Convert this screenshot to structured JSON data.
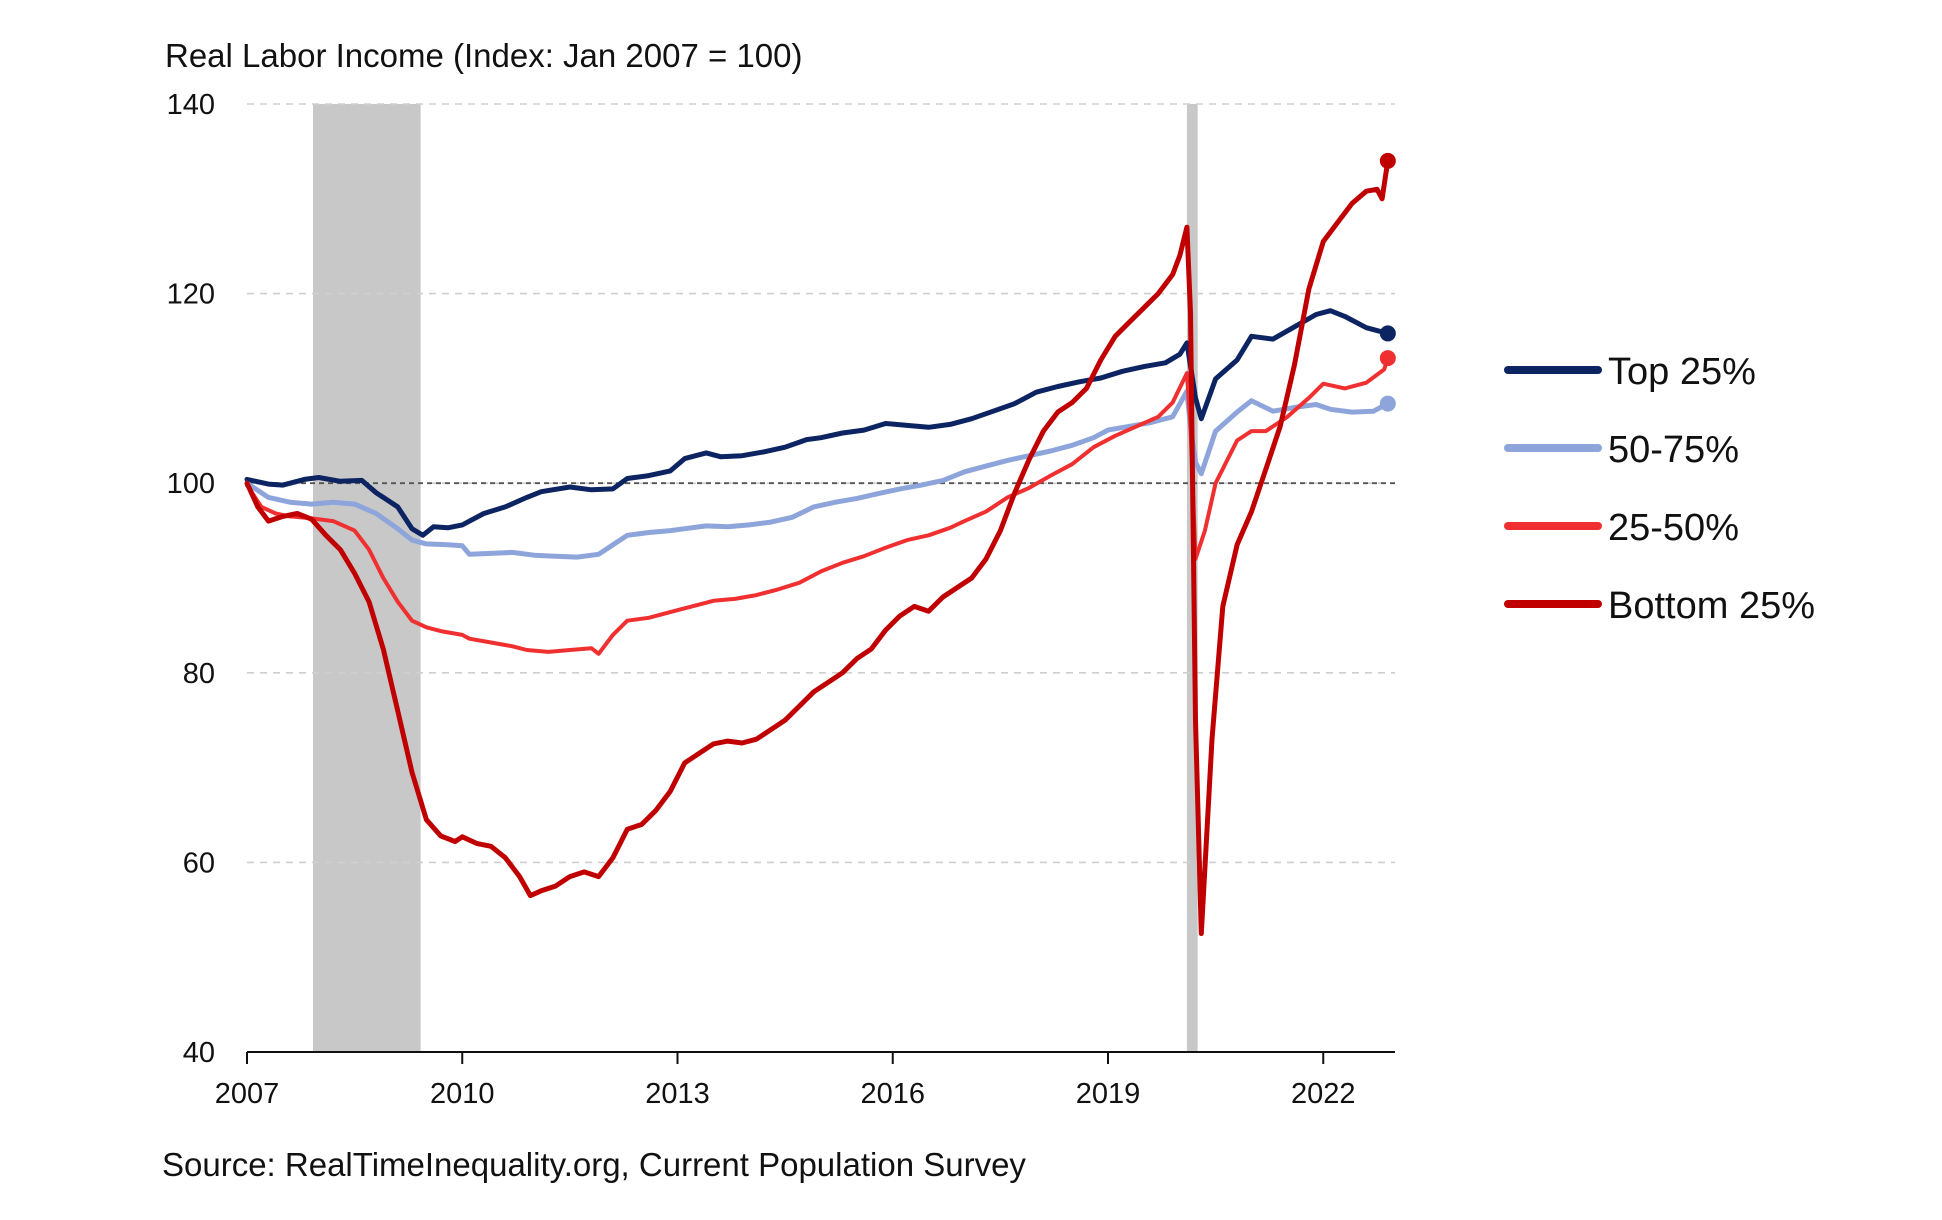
{
  "chart_data": {
    "type": "line",
    "title": "Real Labor Income (Index: Jan 2007 = 100)",
    "source": "Source: RealTimeInequality.org, Current Population Survey",
    "xlabel": "",
    "ylabel": "",
    "xlim": [
      2007,
      2023
    ],
    "ylim": [
      40,
      140
    ],
    "x_ticks": [
      2007,
      2010,
      2013,
      2016,
      2019,
      2022
    ],
    "y_ticks": [
      40,
      60,
      80,
      100,
      120,
      140
    ],
    "grid": "horizontal dashed",
    "reference_line": 100,
    "recessions": [
      [
        2007.92,
        2009.42
      ],
      [
        2020.1,
        2020.25
      ]
    ],
    "legend_position": "right",
    "series": [
      {
        "name": "Top 25%",
        "color": "#0c2461",
        "end_marker": true,
        "points": [
          [
            2007.0,
            100.4
          ],
          [
            2007.3,
            99.9
          ],
          [
            2007.5,
            99.8
          ],
          [
            2007.8,
            100.4
          ],
          [
            2008.0,
            100.6
          ],
          [
            2008.3,
            100.2
          ],
          [
            2008.6,
            100.3
          ],
          [
            2008.8,
            99.0
          ],
          [
            2009.1,
            97.5
          ],
          [
            2009.3,
            95.2
          ],
          [
            2009.45,
            94.5
          ],
          [
            2009.6,
            95.4
          ],
          [
            2009.8,
            95.3
          ],
          [
            2010.0,
            95.6
          ],
          [
            2010.3,
            96.8
          ],
          [
            2010.6,
            97.5
          ],
          [
            2010.9,
            98.5
          ],
          [
            2011.1,
            99.1
          ],
          [
            2011.5,
            99.6
          ],
          [
            2011.8,
            99.3
          ],
          [
            2012.1,
            99.4
          ],
          [
            2012.3,
            100.5
          ],
          [
            2012.6,
            100.8
          ],
          [
            2012.9,
            101.3
          ],
          [
            2013.1,
            102.6
          ],
          [
            2013.4,
            103.2
          ],
          [
            2013.6,
            102.8
          ],
          [
            2013.9,
            102.9
          ],
          [
            2014.2,
            103.3
          ],
          [
            2014.5,
            103.8
          ],
          [
            2014.8,
            104.6
          ],
          [
            2015.0,
            104.8
          ],
          [
            2015.3,
            105.3
          ],
          [
            2015.6,
            105.6
          ],
          [
            2015.9,
            106.3
          ],
          [
            2016.2,
            106.1
          ],
          [
            2016.5,
            105.9
          ],
          [
            2016.8,
            106.2
          ],
          [
            2017.1,
            106.8
          ],
          [
            2017.4,
            107.6
          ],
          [
            2017.7,
            108.4
          ],
          [
            2018.0,
            109.6
          ],
          [
            2018.3,
            110.2
          ],
          [
            2018.6,
            110.7
          ],
          [
            2018.9,
            111.1
          ],
          [
            2019.2,
            111.8
          ],
          [
            2019.5,
            112.3
          ],
          [
            2019.8,
            112.7
          ],
          [
            2020.0,
            113.6
          ],
          [
            2020.1,
            114.8
          ],
          [
            2020.22,
            109.0
          ],
          [
            2020.3,
            106.8
          ],
          [
            2020.5,
            111.0
          ],
          [
            2020.8,
            113.0
          ],
          [
            2021.0,
            115.5
          ],
          [
            2021.3,
            115.2
          ],
          [
            2021.6,
            116.5
          ],
          [
            2021.9,
            117.8
          ],
          [
            2022.1,
            118.2
          ],
          [
            2022.3,
            117.6
          ],
          [
            2022.6,
            116.4
          ],
          [
            2022.9,
            115.8
          ]
        ]
      },
      {
        "name": "50-75%",
        "color": "#8ea5dc",
        "end_marker": true,
        "points": [
          [
            2007.0,
            100.0
          ],
          [
            2007.3,
            98.5
          ],
          [
            2007.6,
            98.0
          ],
          [
            2007.9,
            97.8
          ],
          [
            2008.2,
            98.0
          ],
          [
            2008.5,
            97.8
          ],
          [
            2008.8,
            96.8
          ],
          [
            2009.1,
            95.2
          ],
          [
            2009.3,
            94.0
          ],
          [
            2009.5,
            93.6
          ],
          [
            2009.8,
            93.5
          ],
          [
            2010.0,
            93.4
          ],
          [
            2010.1,
            92.5
          ],
          [
            2010.4,
            92.6
          ],
          [
            2010.7,
            92.7
          ],
          [
            2011.0,
            92.4
          ],
          [
            2011.3,
            92.3
          ],
          [
            2011.6,
            92.2
          ],
          [
            2011.9,
            92.5
          ],
          [
            2012.1,
            93.5
          ],
          [
            2012.3,
            94.5
          ],
          [
            2012.6,
            94.8
          ],
          [
            2012.9,
            95.0
          ],
          [
            2013.1,
            95.2
          ],
          [
            2013.4,
            95.5
          ],
          [
            2013.7,
            95.4
          ],
          [
            2014.0,
            95.6
          ],
          [
            2014.3,
            95.9
          ],
          [
            2014.6,
            96.4
          ],
          [
            2014.9,
            97.5
          ],
          [
            2015.2,
            98.0
          ],
          [
            2015.5,
            98.4
          ],
          [
            2015.8,
            98.9
          ],
          [
            2016.1,
            99.4
          ],
          [
            2016.4,
            99.8
          ],
          [
            2016.7,
            100.3
          ],
          [
            2017.0,
            101.2
          ],
          [
            2017.3,
            101.8
          ],
          [
            2017.6,
            102.4
          ],
          [
            2017.9,
            102.9
          ],
          [
            2018.2,
            103.4
          ],
          [
            2018.5,
            104.0
          ],
          [
            2018.8,
            104.8
          ],
          [
            2019.0,
            105.6
          ],
          [
            2019.3,
            106.0
          ],
          [
            2019.6,
            106.4
          ],
          [
            2019.9,
            107.0
          ],
          [
            2020.1,
            109.7
          ],
          [
            2020.15,
            106.0
          ],
          [
            2020.22,
            102.2
          ],
          [
            2020.3,
            101.0
          ],
          [
            2020.5,
            105.5
          ],
          [
            2020.8,
            107.5
          ],
          [
            2021.0,
            108.7
          ],
          [
            2021.3,
            107.6
          ],
          [
            2021.6,
            108.0
          ],
          [
            2021.9,
            108.3
          ],
          [
            2022.1,
            107.8
          ],
          [
            2022.4,
            107.5
          ],
          [
            2022.7,
            107.6
          ],
          [
            2022.9,
            108.4
          ]
        ]
      },
      {
        "name": "25-50%",
        "color": "#f03030",
        "end_marker": true,
        "points": [
          [
            2007.0,
            99.8
          ],
          [
            2007.2,
            97.5
          ],
          [
            2007.4,
            96.8
          ],
          [
            2007.6,
            96.5
          ],
          [
            2007.9,
            96.3
          ],
          [
            2008.2,
            96.0
          ],
          [
            2008.5,
            95.0
          ],
          [
            2008.7,
            93.0
          ],
          [
            2008.9,
            90.0
          ],
          [
            2009.1,
            87.5
          ],
          [
            2009.3,
            85.5
          ],
          [
            2009.5,
            84.8
          ],
          [
            2009.7,
            84.4
          ],
          [
            2010.0,
            84.0
          ],
          [
            2010.1,
            83.6
          ],
          [
            2010.4,
            83.2
          ],
          [
            2010.7,
            82.8
          ],
          [
            2010.9,
            82.4
          ],
          [
            2011.2,
            82.2
          ],
          [
            2011.5,
            82.4
          ],
          [
            2011.8,
            82.6
          ],
          [
            2011.9,
            82.0
          ],
          [
            2012.1,
            84.0
          ],
          [
            2012.3,
            85.5
          ],
          [
            2012.6,
            85.8
          ],
          [
            2012.9,
            86.4
          ],
          [
            2013.2,
            87.0
          ],
          [
            2013.5,
            87.6
          ],
          [
            2013.8,
            87.8
          ],
          [
            2014.1,
            88.2
          ],
          [
            2014.4,
            88.8
          ],
          [
            2014.7,
            89.5
          ],
          [
            2015.0,
            90.7
          ],
          [
            2015.3,
            91.6
          ],
          [
            2015.6,
            92.3
          ],
          [
            2015.9,
            93.2
          ],
          [
            2016.2,
            94.0
          ],
          [
            2016.5,
            94.5
          ],
          [
            2016.8,
            95.3
          ],
          [
            2017.0,
            96.0
          ],
          [
            2017.3,
            97.0
          ],
          [
            2017.6,
            98.5
          ],
          [
            2017.9,
            99.5
          ],
          [
            2018.2,
            100.8
          ],
          [
            2018.5,
            102.0
          ],
          [
            2018.8,
            103.8
          ],
          [
            2019.1,
            105.0
          ],
          [
            2019.4,
            106.0
          ],
          [
            2019.7,
            107.0
          ],
          [
            2019.9,
            108.5
          ],
          [
            2020.1,
            111.6
          ],
          [
            2020.15,
            106.0
          ],
          [
            2020.22,
            92.0
          ],
          [
            2020.35,
            95.0
          ],
          [
            2020.5,
            100.0
          ],
          [
            2020.8,
            104.5
          ],
          [
            2021.0,
            105.5
          ],
          [
            2021.2,
            105.5
          ],
          [
            2021.5,
            107.0
          ],
          [
            2021.8,
            109.0
          ],
          [
            2022.0,
            110.5
          ],
          [
            2022.3,
            110.0
          ],
          [
            2022.6,
            110.6
          ],
          [
            2022.85,
            112.0
          ],
          [
            2022.9,
            113.2
          ]
        ]
      },
      {
        "name": "Bottom 25%",
        "color": "#c00000",
        "end_marker": true,
        "points": [
          [
            2007.0,
            100.0
          ],
          [
            2007.15,
            97.5
          ],
          [
            2007.3,
            96.0
          ],
          [
            2007.5,
            96.5
          ],
          [
            2007.7,
            96.8
          ],
          [
            2007.9,
            96.2
          ],
          [
            2008.1,
            94.5
          ],
          [
            2008.3,
            93.0
          ],
          [
            2008.5,
            90.5
          ],
          [
            2008.7,
            87.5
          ],
          [
            2008.9,
            82.5
          ],
          [
            2009.1,
            76.0
          ],
          [
            2009.3,
            69.5
          ],
          [
            2009.5,
            64.5
          ],
          [
            2009.7,
            62.8
          ],
          [
            2009.9,
            62.2
          ],
          [
            2010.0,
            62.7
          ],
          [
            2010.2,
            62.0
          ],
          [
            2010.4,
            61.7
          ],
          [
            2010.6,
            60.5
          ],
          [
            2010.8,
            58.5
          ],
          [
            2010.95,
            56.5
          ],
          [
            2011.1,
            57.0
          ],
          [
            2011.3,
            57.5
          ],
          [
            2011.5,
            58.5
          ],
          [
            2011.7,
            59.0
          ],
          [
            2011.9,
            58.5
          ],
          [
            2012.1,
            60.5
          ],
          [
            2012.3,
            63.5
          ],
          [
            2012.5,
            64.0
          ],
          [
            2012.7,
            65.5
          ],
          [
            2012.9,
            67.5
          ],
          [
            2013.1,
            70.5
          ],
          [
            2013.3,
            71.5
          ],
          [
            2013.5,
            72.5
          ],
          [
            2013.7,
            72.8
          ],
          [
            2013.9,
            72.6
          ],
          [
            2014.1,
            73.0
          ],
          [
            2014.3,
            74.0
          ],
          [
            2014.5,
            75.0
          ],
          [
            2014.7,
            76.5
          ],
          [
            2014.9,
            78.0
          ],
          [
            2015.1,
            79.0
          ],
          [
            2015.3,
            80.0
          ],
          [
            2015.5,
            81.5
          ],
          [
            2015.7,
            82.5
          ],
          [
            2015.9,
            84.5
          ],
          [
            2016.1,
            86.0
          ],
          [
            2016.3,
            87.0
          ],
          [
            2016.5,
            86.5
          ],
          [
            2016.7,
            88.0
          ],
          [
            2016.9,
            89.0
          ],
          [
            2017.1,
            90.0
          ],
          [
            2017.3,
            92.0
          ],
          [
            2017.5,
            95.0
          ],
          [
            2017.7,
            99.0
          ],
          [
            2017.9,
            102.5
          ],
          [
            2018.1,
            105.5
          ],
          [
            2018.3,
            107.5
          ],
          [
            2018.5,
            108.5
          ],
          [
            2018.7,
            110.0
          ],
          [
            2018.9,
            113.0
          ],
          [
            2019.1,
            115.5
          ],
          [
            2019.3,
            117.0
          ],
          [
            2019.5,
            118.5
          ],
          [
            2019.7,
            120.0
          ],
          [
            2019.9,
            122.0
          ],
          [
            2020.0,
            124.0
          ],
          [
            2020.1,
            127.0
          ],
          [
            2020.15,
            118.0
          ],
          [
            2020.22,
            75.0
          ],
          [
            2020.3,
            52.5
          ],
          [
            2020.45,
            73.0
          ],
          [
            2020.6,
            87.0
          ],
          [
            2020.8,
            93.5
          ],
          [
            2021.0,
            97.0
          ],
          [
            2021.2,
            101.5
          ],
          [
            2021.4,
            106.0
          ],
          [
            2021.6,
            112.5
          ],
          [
            2021.8,
            120.5
          ],
          [
            2022.0,
            125.5
          ],
          [
            2022.2,
            127.5
          ],
          [
            2022.4,
            129.5
          ],
          [
            2022.6,
            130.8
          ],
          [
            2022.75,
            131.0
          ],
          [
            2022.82,
            130.0
          ],
          [
            2022.9,
            134.0
          ]
        ]
      }
    ]
  }
}
